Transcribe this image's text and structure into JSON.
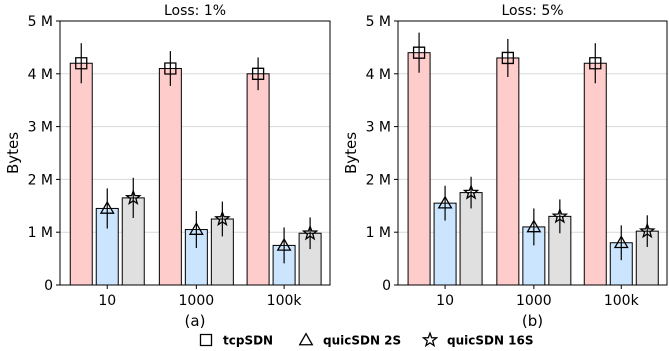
{
  "chart_data": [
    {
      "type": "bar",
      "title": "Loss: 1%",
      "caption": "(a)",
      "xlabel": "",
      "ylabel": "Bytes",
      "ylim": [
        0,
        5000000
      ],
      "yticks": [
        "0",
        "1 M",
        "2 M",
        "3 M",
        "4 M",
        "5 M"
      ],
      "grid": "horizontal",
      "categories": [
        "10",
        "1000",
        "100k"
      ],
      "series": [
        {
          "name": "tcpSDN",
          "values": [
            4200000,
            4100000,
            4000000
          ],
          "errors": [
            380000,
            330000,
            310000
          ]
        },
        {
          "name": "quicSDN 2S",
          "values": [
            1450000,
            1050000,
            750000
          ],
          "errors": [
            380000,
            350000,
            340000
          ]
        },
        {
          "name": "quicSDN 16S",
          "values": [
            1650000,
            1250000,
            980000
          ],
          "errors": [
            380000,
            330000,
            300000
          ]
        }
      ]
    },
    {
      "type": "bar",
      "title": "Loss: 5%",
      "caption": "(b)",
      "xlabel": "",
      "ylabel": "Bytes",
      "ylim": [
        0,
        5000000
      ],
      "yticks": [
        "0",
        "1 M",
        "2 M",
        "3 M",
        "4 M",
        "5 M"
      ],
      "grid": "horizontal",
      "categories": [
        "10",
        "1000",
        "100k"
      ],
      "series": [
        {
          "name": "tcpSDN",
          "values": [
            4400000,
            4300000,
            4200000
          ],
          "errors": [
            380000,
            360000,
            380000
          ]
        },
        {
          "name": "quicSDN 2S",
          "values": [
            1550000,
            1100000,
            800000
          ],
          "errors": [
            330000,
            350000,
            330000
          ]
        },
        {
          "name": "quicSDN 16S",
          "values": [
            1750000,
            1300000,
            1020000
          ],
          "errors": [
            300000,
            320000,
            300000
          ]
        }
      ]
    }
  ],
  "legend": {
    "position": "bottom-center",
    "entries": [
      {
        "label": "tcpSDN",
        "marker": "square-icon"
      },
      {
        "label": "quicSDN 2S",
        "marker": "triangle-icon"
      },
      {
        "label": "quicSDN 16S",
        "marker": "star-icon"
      }
    ]
  },
  "colors": {
    "tcpSDN": "#ffcccc",
    "quicSDN 2S": "#cce5ff",
    "quicSDN 16S": "#e0e0e0",
    "grid": "#d9d9d9",
    "axis": "#000000"
  }
}
